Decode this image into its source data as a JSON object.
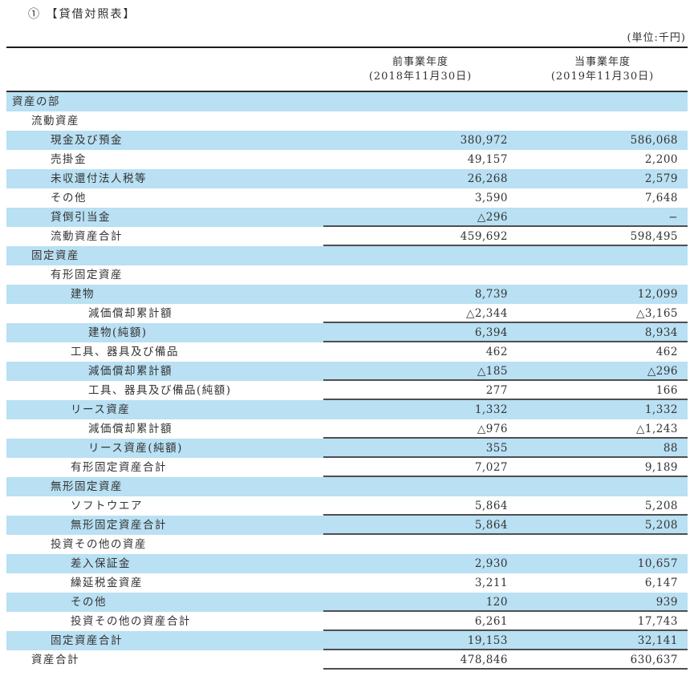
{
  "title": "① 【貸借対照表】",
  "unit_note": "(単位:千円)",
  "colors": {
    "stripe": "#b9e0f3",
    "text": "#333333",
    "heavy_rule": "#1c1c1c",
    "value_rule": "#4f4f4f"
  },
  "table": {
    "columns": [
      {
        "line1": "前事業年度",
        "line2": "(2018年11月30日)"
      },
      {
        "line1": "当事業年度",
        "line2": "(2019年11月30日)"
      }
    ],
    "rows": [
      {
        "label": "資産の部",
        "indent": 0,
        "prior": "",
        "current": "",
        "rule": false
      },
      {
        "label": "流動資産",
        "indent": 1,
        "prior": "",
        "current": "",
        "rule": false
      },
      {
        "label": "現金及び預金",
        "indent": 2,
        "prior": "380,972",
        "current": "586,068",
        "rule": false
      },
      {
        "label": "売掛金",
        "indent": 2,
        "prior": "49,157",
        "current": "2,200",
        "rule": false
      },
      {
        "label": "未収還付法人税等",
        "indent": 2,
        "prior": "26,268",
        "current": "2,579",
        "rule": false
      },
      {
        "label": "その他",
        "indent": 2,
        "prior": "3,590",
        "current": "7,648",
        "rule": false
      },
      {
        "label": "貸倒引当金",
        "indent": 2,
        "prior": "△296",
        "current": "−",
        "rule": true
      },
      {
        "label": "流動資産合計",
        "indent": 2,
        "prior": "459,692",
        "current": "598,495",
        "rule": true
      },
      {
        "label": "固定資産",
        "indent": 1,
        "prior": "",
        "current": "",
        "rule": false
      },
      {
        "label": "有形固定資産",
        "indent": 2,
        "prior": "",
        "current": "",
        "rule": false
      },
      {
        "label": "建物",
        "indent": 3,
        "prior": "8,739",
        "current": "12,099",
        "rule": false
      },
      {
        "label": "減価償却累計額",
        "indent": 4,
        "prior": "△2,344",
        "current": "△3,165",
        "rule": true
      },
      {
        "label": "建物(純額)",
        "indent": 4,
        "prior": "6,394",
        "current": "8,934",
        "rule": true
      },
      {
        "label": "工具、器具及び備品",
        "indent": 3,
        "prior": "462",
        "current": "462",
        "rule": false
      },
      {
        "label": "減価償却累計額",
        "indent": 4,
        "prior": "△185",
        "current": "△296",
        "rule": true
      },
      {
        "label": "工具、器具及び備品(純額)",
        "indent": 4,
        "prior": "277",
        "current": "166",
        "rule": true
      },
      {
        "label": "リース資産",
        "indent": 3,
        "prior": "1,332",
        "current": "1,332",
        "rule": false
      },
      {
        "label": "減価償却累計額",
        "indent": 4,
        "prior": "△976",
        "current": "△1,243",
        "rule": true
      },
      {
        "label": "リース資産(純額)",
        "indent": 4,
        "prior": "355",
        "current": "88",
        "rule": true
      },
      {
        "label": "有形固定資産合計",
        "indent": 3,
        "prior": "7,027",
        "current": "9,189",
        "rule": true
      },
      {
        "label": "無形固定資産",
        "indent": 2,
        "prior": "",
        "current": "",
        "rule": false
      },
      {
        "label": "ソフトウエア",
        "indent": 3,
        "prior": "5,864",
        "current": "5,208",
        "rule": true
      },
      {
        "label": "無形固定資産合計",
        "indent": 3,
        "prior": "5,864",
        "current": "5,208",
        "rule": true
      },
      {
        "label": "投資その他の資産",
        "indent": 2,
        "prior": "",
        "current": "",
        "rule": false
      },
      {
        "label": "差入保証金",
        "indent": 3,
        "prior": "2,930",
        "current": "10,657",
        "rule": false
      },
      {
        "label": "繰延税金資産",
        "indent": 3,
        "prior": "3,211",
        "current": "6,147",
        "rule": false
      },
      {
        "label": "その他",
        "indent": 3,
        "prior": "120",
        "current": "939",
        "rule": true
      },
      {
        "label": "投資その他の資産合計",
        "indent": 3,
        "prior": "6,261",
        "current": "17,743",
        "rule": true
      },
      {
        "label": "固定資産合計",
        "indent": 2,
        "prior": "19,153",
        "current": "32,141",
        "rule": true
      },
      {
        "label": "資産合計",
        "indent": 1,
        "prior": "478,846",
        "current": "630,637",
        "rule": true
      }
    ]
  }
}
